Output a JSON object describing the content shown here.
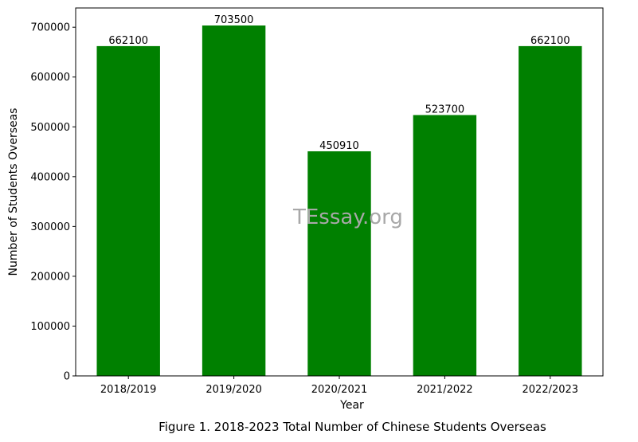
{
  "chart_data": {
    "type": "bar",
    "categories": [
      "2018/2019",
      "2019/2020",
      "2020/2021",
      "2021/2022",
      "2022/2023"
    ],
    "values": [
      662100,
      703500,
      450910,
      523700,
      662100
    ],
    "data_labels": [
      "662100",
      "703500",
      "450910",
      "523700",
      "662100"
    ],
    "xlabel": "Year",
    "ylabel": "Number of Students Overseas",
    "ylim": [
      0,
      738675
    ],
    "yticks": [
      0,
      100000,
      200000,
      300000,
      400000,
      500000,
      600000,
      700000
    ],
    "ytick_labels": [
      "0",
      "100000",
      "200000",
      "300000",
      "400000",
      "500000",
      "600000",
      "700000"
    ],
    "bar_color": "#008000",
    "grid": false,
    "legend": "none"
  },
  "caption": "Figure 1. 2018-2023 Total Number of Chinese Students Overseas",
  "watermark": "TEssay.org"
}
